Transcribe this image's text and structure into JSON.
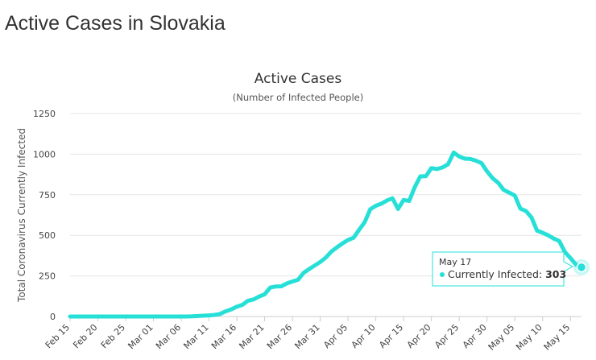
{
  "page": {
    "title": "Active Cases in Slovakia"
  },
  "chart_data": {
    "type": "line",
    "title": "Active Cases",
    "subtitle": "(Number of Infected People)",
    "ylabel": "Total Coronavirus Currently Infected",
    "xlabel": "",
    "ylim": [
      0,
      1250
    ],
    "yticks": [
      0,
      250,
      500,
      750,
      1000,
      1250
    ],
    "xtick_labels": [
      "Feb 15",
      "Feb 20",
      "Feb 25",
      "Mar 01",
      "Mar 06",
      "Mar 11",
      "Mar 16",
      "Mar 21",
      "Mar 26",
      "Mar 31",
      "Apr 05",
      "Apr 10",
      "Apr 15",
      "Apr 20",
      "Apr 25",
      "Apr 30",
      "May 05",
      "May 10",
      "May 15"
    ],
    "grid": true,
    "legend": "none",
    "line_color": "#26e0d8",
    "series": [
      {
        "x": [
          "Feb 15",
          "Feb 16",
          "Feb 17",
          "Feb 18",
          "Feb 19",
          "Feb 20",
          "Feb 21",
          "Feb 22",
          "Feb 23",
          "Feb 24",
          "Feb 25",
          "Feb 26",
          "Feb 27",
          "Feb 28",
          "Feb 29",
          "Mar 01",
          "Mar 02",
          "Mar 03",
          "Mar 04",
          "Mar 05",
          "Mar 06",
          "Mar 07",
          "Mar 08",
          "Mar 09",
          "Mar 10",
          "Mar 11",
          "Mar 12",
          "Mar 13",
          "Mar 14",
          "Mar 15",
          "Mar 16",
          "Mar 17",
          "Mar 18",
          "Mar 19",
          "Mar 20",
          "Mar 21",
          "Mar 22",
          "Mar 23",
          "Mar 24",
          "Mar 25",
          "Mar 26",
          "Mar 27",
          "Mar 28",
          "Mar 29",
          "Mar 30",
          "Mar 31",
          "Apr 01",
          "Apr 02",
          "Apr 03",
          "Apr 04",
          "Apr 05",
          "Apr 06",
          "Apr 07",
          "Apr 08",
          "Apr 09",
          "Apr 10",
          "Apr 11",
          "Apr 12",
          "Apr 13",
          "Apr 14",
          "Apr 15",
          "Apr 16",
          "Apr 17",
          "Apr 18",
          "Apr 19",
          "Apr 20",
          "Apr 21",
          "Apr 22",
          "Apr 23",
          "Apr 24",
          "Apr 25",
          "Apr 26",
          "Apr 27",
          "Apr 28",
          "Apr 29",
          "Apr 30",
          "May 01",
          "May 02",
          "May 03",
          "May 04",
          "May 05",
          "May 06",
          "May 07",
          "May 08",
          "May 09",
          "May 10",
          "May 11",
          "May 12",
          "May 13",
          "May 14",
          "May 15",
          "May 16",
          "May 17"
        ],
        "values": [
          0,
          0,
          0,
          0,
          0,
          0,
          0,
          0,
          0,
          0,
          0,
          0,
          0,
          0,
          0,
          0,
          0,
          0,
          0,
          0,
          0,
          0,
          1,
          3,
          5,
          7,
          10,
          16,
          32,
          44,
          61,
          72,
          97,
          105,
          123,
          137,
          178,
          185,
          186,
          204,
          216,
          226,
          269,
          292,
          314,
          336,
          363,
          400,
          426,
          450,
          471,
          485,
          534,
          581,
          660,
          682,
          695,
          715,
          728,
          662,
          718,
          712,
          796,
          863,
          864,
          914,
          908,
          918,
          938,
          1010,
          985,
          972,
          970,
          960,
          945,
          894,
          852,
          824,
          780,
          763,
          745,
          664,
          650,
          610,
          529,
          516,
          500,
          480,
          465,
          398,
          360,
          320,
          303
        ]
      }
    ],
    "tooltip": {
      "date": "May 17",
      "label": "Currently Infected",
      "value": "303"
    }
  }
}
